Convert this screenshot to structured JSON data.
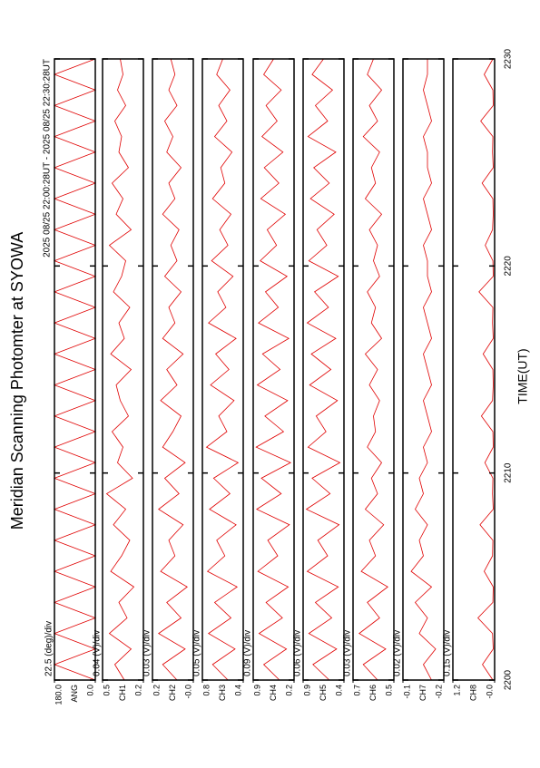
{
  "title": "Meridian Scanning Photomter at SYOWA",
  "time_range": "2025 08/25 22:00:28UT - 2025 08/25 22:30:28UT",
  "xlabel": "TIME(UT)",
  "xlim": [
    2200,
    2230
  ],
  "xticks": [
    2200,
    2210,
    2220,
    2230
  ],
  "x": [
    2200,
    2200.75,
    2201.5,
    2202.25,
    2203,
    2203.75,
    2204.5,
    2205.25,
    2206,
    2206.75,
    2207.5,
    2208.25,
    2209,
    2209.75,
    2210.5,
    2211.25,
    2212,
    2212.75,
    2213.5,
    2214.25,
    2215,
    2215.75,
    2216.5,
    2217.25,
    2218,
    2218.75,
    2219.5,
    2220.25,
    2221,
    2221.75,
    2222.5,
    2223.25,
    2224,
    2224.75,
    2225.5,
    2226.25,
    2227,
    2227.75,
    2228.5,
    2229.25,
    2230
  ],
  "chart_data": [
    {
      "type": "line",
      "scale_label": "22.5 (deg)/div",
      "ylabel": "ANG",
      "color": "#e00000",
      "ylim": [
        0,
        180
      ],
      "yticks": [
        {
          "value": 0,
          "label": "0.0"
        },
        {
          "value": 180,
          "label": "180.0"
        }
      ],
      "values": [
        0,
        180,
        0,
        180,
        0,
        180,
        0,
        180,
        0,
        180,
        0,
        180,
        0,
        180,
        0,
        180,
        0,
        180,
        0,
        180,
        0,
        180,
        0,
        180,
        0,
        180,
        0,
        180,
        0,
        180,
        0,
        180,
        0,
        180,
        0,
        180,
        0,
        180,
        0,
        180,
        0
      ]
    },
    {
      "type": "line",
      "scale_label": "0.04 (V)/div",
      "ylabel": "CH1",
      "color": "#e00000",
      "ylim": [
        0.2,
        0.5
      ],
      "yticks": [
        0.2,
        0.5
      ],
      "values": [
        0.34,
        0.41,
        0.29,
        0.45,
        0.32,
        0.38,
        0.27,
        0.44,
        0.36,
        0.3,
        0.42,
        0.33,
        0.47,
        0.28,
        0.39,
        0.35,
        0.43,
        0.31,
        0.37,
        0.4,
        0.29,
        0.44,
        0.34,
        0.38,
        0.3,
        0.42,
        0.36,
        0.33,
        0.45,
        0.29,
        0.4,
        0.35,
        0.43,
        0.31,
        0.38,
        0.36,
        0.41,
        0.33,
        0.39,
        0.35,
        0.37
      ]
    },
    {
      "type": "line",
      "scale_label": "0.03 (V)/div",
      "ylabel": "CH2",
      "color": "#e00000",
      "ylim": [
        0,
        0.2
      ],
      "yticks": [
        {
          "value": 0,
          "label": "-0.0"
        },
        0.2
      ],
      "values": [
        0.08,
        0.15,
        0.04,
        0.17,
        0.06,
        0.13,
        0.03,
        0.16,
        0.09,
        0.12,
        0.05,
        0.17,
        0.07,
        0.14,
        0.04,
        0.15,
        0.1,
        0.06,
        0.16,
        0.08,
        0.13,
        0.05,
        0.15,
        0.09,
        0.12,
        0.06,
        0.14,
        0.08,
        0.11,
        0.07,
        0.15,
        0.09,
        0.12,
        0.06,
        0.13,
        0.1,
        0.14,
        0.08,
        0.12,
        0.09,
        0.11
      ]
    },
    {
      "type": "line",
      "scale_label": "0.05 (V)/div",
      "ylabel": "CH3",
      "color": "#e00000",
      "ylim": [
        0.4,
        0.8
      ],
      "yticks": [
        0.4,
        0.8
      ],
      "values": [
        0.55,
        0.7,
        0.48,
        0.74,
        0.52,
        0.68,
        0.46,
        0.75,
        0.58,
        0.66,
        0.47,
        0.73,
        0.53,
        0.69,
        0.45,
        0.76,
        0.56,
        0.64,
        0.49,
        0.72,
        0.54,
        0.67,
        0.47,
        0.74,
        0.57,
        0.65,
        0.5,
        0.71,
        0.55,
        0.63,
        0.52,
        0.7,
        0.58,
        0.62,
        0.51,
        0.68,
        0.56,
        0.64,
        0.53,
        0.66,
        0.6
      ]
    },
    {
      "type": "line",
      "scale_label": "0.09 (V)/div",
      "ylabel": "CH4",
      "color": "#e00000",
      "ylim": [
        0.2,
        0.9
      ],
      "yticks": [
        0.2,
        0.9
      ],
      "values": [
        0.45,
        0.72,
        0.33,
        0.8,
        0.4,
        0.68,
        0.3,
        0.82,
        0.48,
        0.65,
        0.28,
        0.84,
        0.42,
        0.76,
        0.26,
        0.85,
        0.38,
        0.7,
        0.31,
        0.83,
        0.44,
        0.74,
        0.29,
        0.81,
        0.47,
        0.69,
        0.32,
        0.78,
        0.5,
        0.66,
        0.35,
        0.77,
        0.46,
        0.71,
        0.39,
        0.75,
        0.49,
        0.68,
        0.42,
        0.72,
        0.55
      ]
    },
    {
      "type": "line",
      "scale_label": "0.06 (V)/div",
      "ylabel": "CH5",
      "color": "#e00000",
      "ylim": [
        0.4,
        0.9
      ],
      "yticks": [
        0.4,
        0.9
      ],
      "values": [
        0.58,
        0.78,
        0.49,
        0.83,
        0.55,
        0.75,
        0.47,
        0.85,
        0.6,
        0.72,
        0.46,
        0.86,
        0.57,
        0.79,
        0.45,
        0.84,
        0.62,
        0.74,
        0.48,
        0.82,
        0.56,
        0.8,
        0.5,
        0.85,
        0.59,
        0.76,
        0.47,
        0.83,
        0.61,
        0.73,
        0.52,
        0.81,
        0.58,
        0.77,
        0.5,
        0.84,
        0.6,
        0.75,
        0.54,
        0.79,
        0.65
      ]
    },
    {
      "type": "line",
      "scale_label": "0.03 (V)/div",
      "ylabel": "CH6",
      "color": "#e00000",
      "ylim": [
        0.5,
        0.7
      ],
      "yticks": [
        0.5,
        0.7
      ],
      "values": [
        0.58,
        0.65,
        0.54,
        0.67,
        0.57,
        0.63,
        0.53,
        0.66,
        0.59,
        0.62,
        0.55,
        0.64,
        0.58,
        0.61,
        0.56,
        0.63,
        0.59,
        0.6,
        0.57,
        0.62,
        0.58,
        0.64,
        0.56,
        0.61,
        0.59,
        0.63,
        0.57,
        0.6,
        0.58,
        0.62,
        0.56,
        0.64,
        0.59,
        0.61,
        0.57,
        0.65,
        0.58,
        0.62,
        0.56,
        0.63,
        0.6
      ]
    },
    {
      "type": "line",
      "scale_label": "0.02 (V)/div",
      "ylabel": "CH7",
      "color": "#e00000",
      "ylim": [
        -0.2,
        -0.1
      ],
      "yticks": [
        -0.2,
        -0.1
      ],
      "values": [
        -0.17,
        -0.15,
        -0.18,
        -0.14,
        -0.16,
        -0.13,
        -0.17,
        -0.12,
        -0.15,
        -0.14,
        -0.16,
        -0.13,
        -0.15,
        -0.14,
        -0.16,
        -0.15,
        -0.17,
        -0.16,
        -0.15,
        -0.17,
        -0.16,
        -0.15,
        -0.17,
        -0.16,
        -0.15,
        -0.17,
        -0.16,
        -0.16,
        -0.15,
        -0.17,
        -0.16,
        -0.15,
        -0.17,
        -0.16,
        -0.16,
        -0.15,
        -0.17,
        -0.16,
        -0.15,
        -0.16,
        -0.16
      ]
    },
    {
      "type": "line",
      "scale_label": "0.15 (V)/div",
      "ylabel": "CH8",
      "color": "#e00000",
      "ylim": [
        0,
        1.2
      ],
      "yticks": [
        {
          "value": 0,
          "label": "-0.0"
        },
        1.2
      ],
      "values": [
        0.05,
        0.35,
        0.04,
        0.06,
        0.48,
        0.05,
        0.04,
        0.3,
        0.06,
        0.05,
        0.42,
        0.04,
        0.06,
        0.05,
        0.28,
        0.04,
        0.05,
        0.38,
        0.06,
        0.04,
        0.05,
        0.33,
        0.04,
        0.06,
        0.05,
        0.45,
        0.04,
        0.05,
        0.27,
        0.06,
        0.04,
        0.05,
        0.36,
        0.04,
        0.06,
        0.05,
        0.4,
        0.04,
        0.05,
        0.3,
        0.05
      ]
    }
  ]
}
